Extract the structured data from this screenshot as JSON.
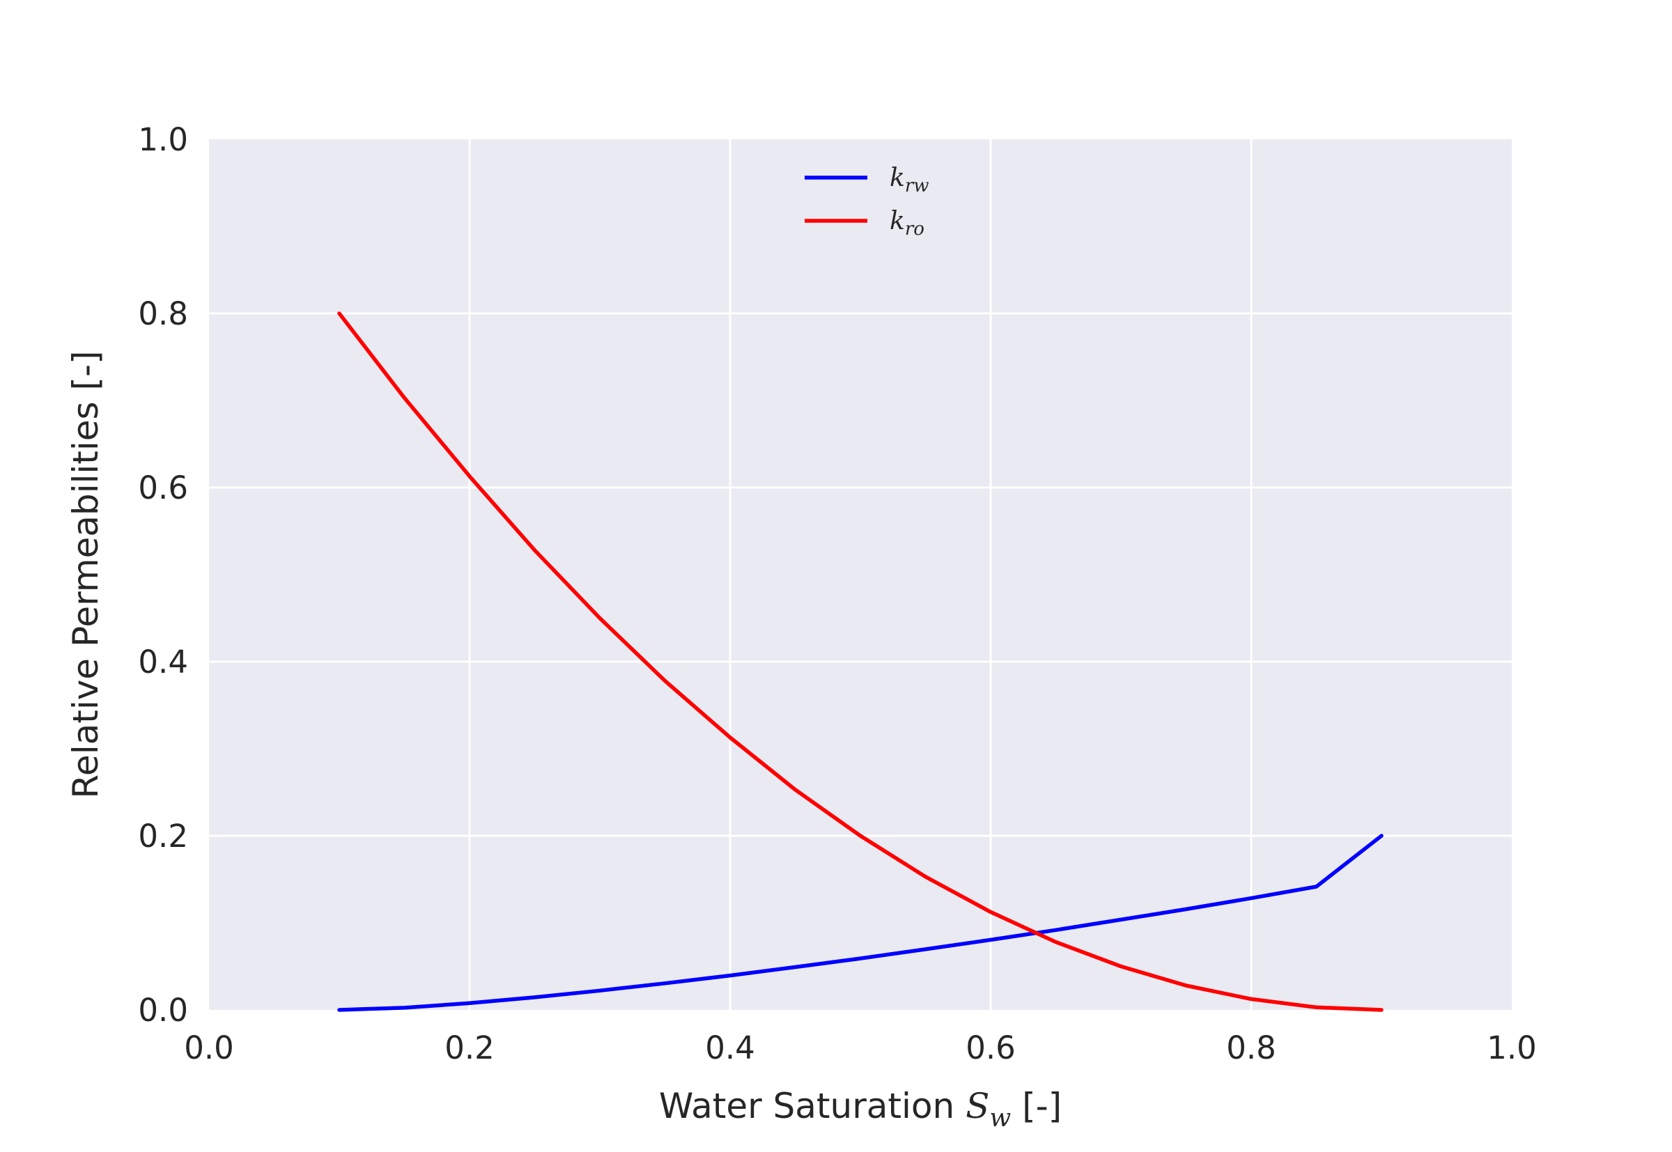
{
  "chart_data": {
    "type": "line",
    "title": "",
    "xlabel": {
      "prefix": "Water Saturation ",
      "symbol": "S",
      "subscript": "w",
      "suffix": " [-]"
    },
    "ylabel": "Relative Permeabilities [-]",
    "xlim": [
      0.0,
      1.0
    ],
    "ylim": [
      0.0,
      1.0
    ],
    "xticks": [
      0.0,
      0.2,
      0.4,
      0.6,
      0.8,
      1.0
    ],
    "yticks": [
      0.0,
      0.2,
      0.4,
      0.6,
      0.8,
      1.0
    ],
    "xtick_labels": [
      "0.0",
      "0.2",
      "0.4",
      "0.6",
      "0.8",
      "1.0"
    ],
    "ytick_labels": [
      "0.0",
      "0.2",
      "0.4",
      "0.6",
      "0.8",
      "1.0"
    ],
    "grid": true,
    "legend_position": "top-center",
    "background_color": "#eaeaf2",
    "grid_color": "#ffffff",
    "series": [
      {
        "name": "k_rw",
        "label_symbol": "k",
        "label_subscript": "rw",
        "color": "#0000ff",
        "x": [
          0.1,
          0.15,
          0.2,
          0.25,
          0.3,
          0.35,
          0.4,
          0.45,
          0.5,
          0.55,
          0.6,
          0.65,
          0.7,
          0.75,
          0.8,
          0.85,
          0.9
        ],
        "y": [
          0.0,
          0.0025,
          0.0078,
          0.0145,
          0.0222,
          0.0306,
          0.0395,
          0.0492,
          0.0591,
          0.0697,
          0.0805,
          0.0918,
          0.1037,
          0.1157,
          0.1283,
          0.1416,
          0.2
        ]
      },
      {
        "name": "k_ro",
        "label_symbol": "k",
        "label_subscript": "ro",
        "color": "#ff0000",
        "x": [
          0.1,
          0.15,
          0.2,
          0.25,
          0.3,
          0.35,
          0.4,
          0.45,
          0.5,
          0.55,
          0.6,
          0.65,
          0.7,
          0.75,
          0.8,
          0.85,
          0.9
        ],
        "y": [
          0.8,
          0.703,
          0.613,
          0.528,
          0.45,
          0.378,
          0.313,
          0.253,
          0.2,
          0.153,
          0.1125,
          0.078,
          0.05,
          0.028,
          0.0125,
          0.003,
          0.0
        ]
      }
    ]
  }
}
